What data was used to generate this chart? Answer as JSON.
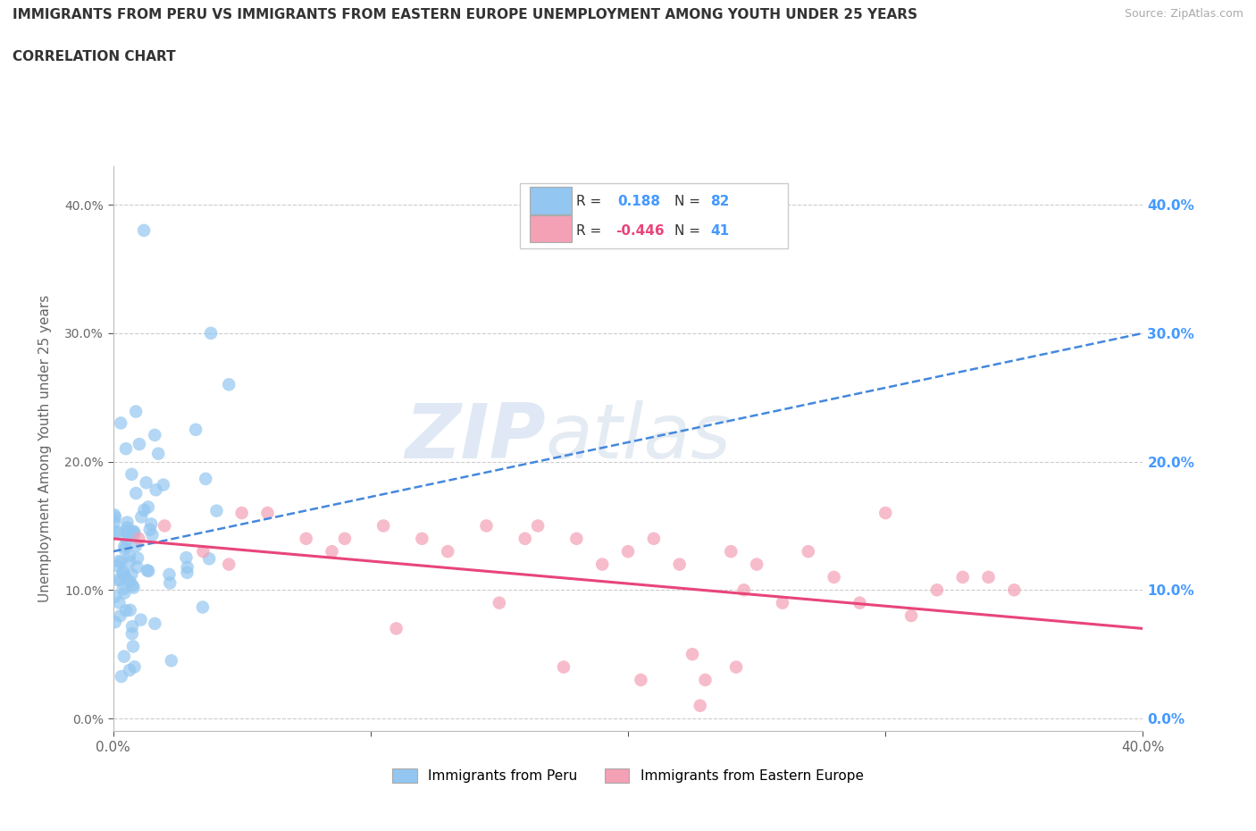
{
  "title_line1": "IMMIGRANTS FROM PERU VS IMMIGRANTS FROM EASTERN EUROPE UNEMPLOYMENT AMONG YOUTH UNDER 25 YEARS",
  "title_line2": "CORRELATION CHART",
  "source_text": "Source: ZipAtlas.com",
  "watermark_zip": "ZIP",
  "watermark_atlas": "atlas",
  "ylabel": "Unemployment Among Youth under 25 years",
  "ytick_values": [
    0,
    10,
    20,
    30,
    40
  ],
  "xlim": [
    0,
    40
  ],
  "ylim": [
    -1,
    43
  ],
  "peru_R": 0.188,
  "peru_N": 82,
  "ee_R": -0.446,
  "ee_N": 41,
  "peru_color": "#93c6f0",
  "ee_color": "#f4a0b5",
  "peru_line_color": "#4488dd",
  "ee_line_color": "#e8457a",
  "background_color": "#ffffff",
  "grid_color": "#cccccc",
  "title_color": "#333333",
  "axis_label_color": "#666666",
  "right_tick_color": "#4499ff",
  "legend_R_peru_color": "#4499ff",
  "legend_R_ee_color": "#e8457a",
  "legend_N_color": "#4499ff",
  "peru_line_start_y": 13.0,
  "peru_line_end_y": 30.0,
  "ee_line_start_y": 14.0,
  "ee_line_end_y": 7.0
}
